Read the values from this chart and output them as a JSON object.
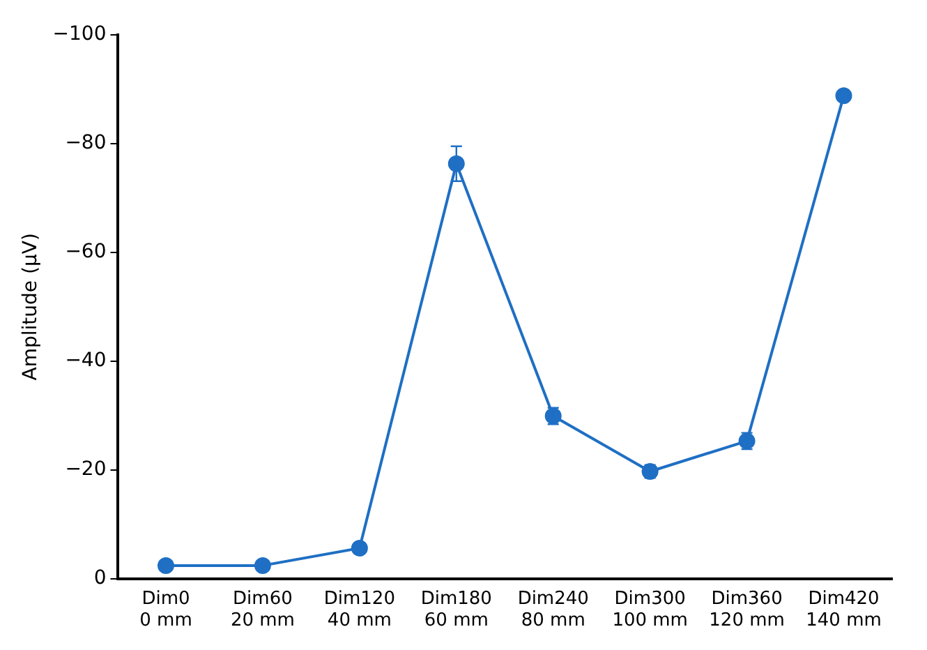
{
  "chart_data": {
    "type": "line",
    "ylabel": "Amplitude (µV)",
    "categories": [
      "Dim0\n0 mm",
      "Dim60\n20 mm",
      "Dim120\n40 mm",
      "Dim180\n60 mm",
      "Dim240\n80 mm",
      "Dim300\n100 mm",
      "Dim360\n120 mm",
      "Dim420\n140 mm"
    ],
    "series": [
      {
        "color": "#1f6fc4",
        "values": [
          -2.4,
          -2.4,
          -5.6,
          -76.3,
          -29.9,
          -19.7,
          -25.3,
          -88.8
        ],
        "errors": [
          null,
          null,
          1,
          3.2,
          1.5,
          1.2,
          1.5,
          null
        ]
      }
    ],
    "ylim": [
      0,
      -100
    ],
    "yticks": [
      0,
      -20,
      -40,
      -60,
      -80,
      -100
    ],
    "grid": false,
    "legend": false,
    "marker": "circle",
    "line_style": "solid"
  }
}
